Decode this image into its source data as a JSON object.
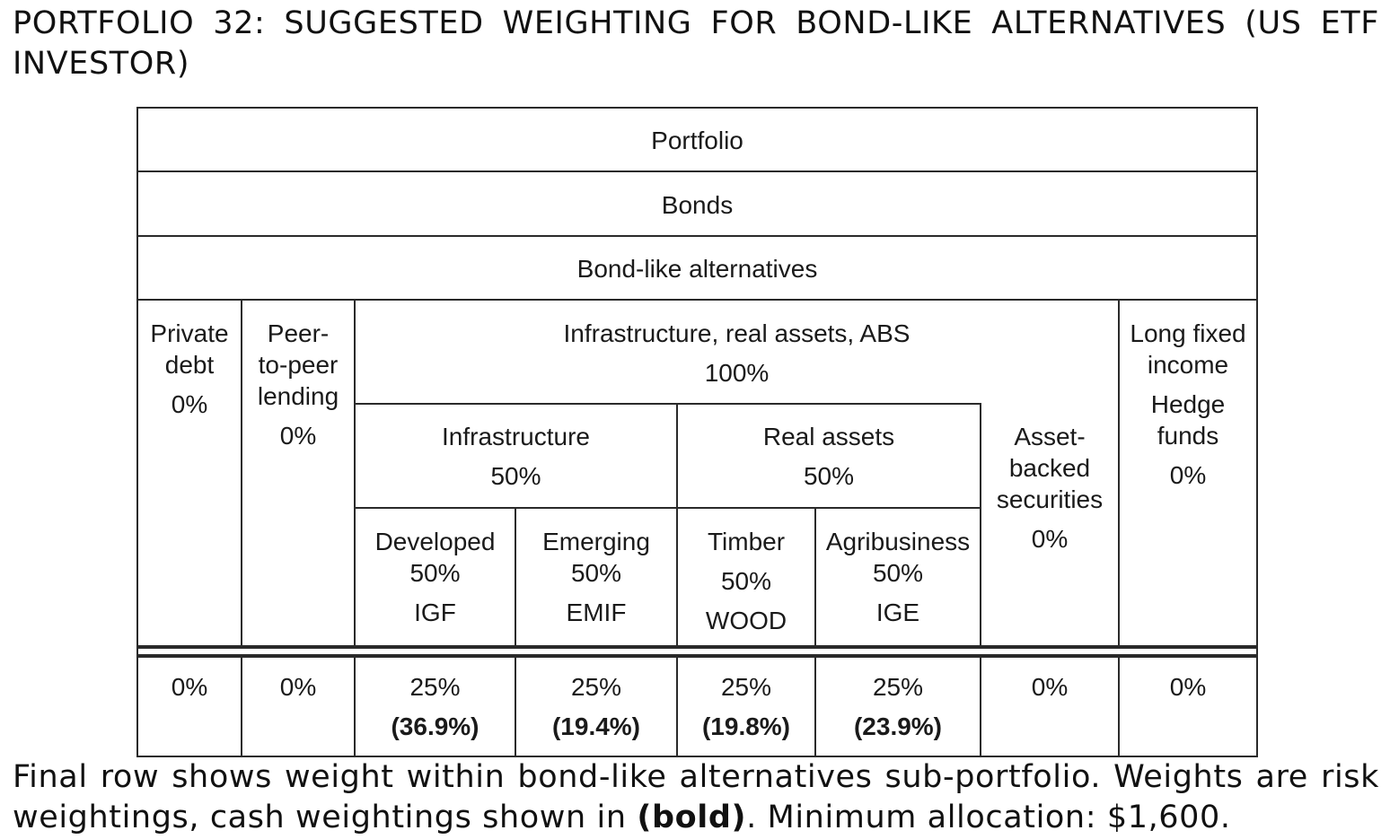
{
  "title": "PORTFOLIO 32: SUGGESTED WEIGHTING FOR BOND-LIKE ALTERNATIVES (US ETF INVESTOR)",
  "table": {
    "portfolio": "Portfolio",
    "bonds": "Bonds",
    "bond_like_alternatives": "Bond-like alternatives",
    "private_debt": {
      "line1": "Private",
      "line2": "debt",
      "weight": "0%"
    },
    "peer_to_peer": {
      "line1": "Peer-",
      "line2": "to-peer",
      "line3": "lending",
      "weight": "0%"
    },
    "infra_real_abs": {
      "label": "Infrastructure, real assets, ABS",
      "weight": "100%"
    },
    "long_fixed_income": {
      "line1": "Long fixed",
      "line2": "income",
      "line3": "Hedge",
      "line4": "funds",
      "weight": "0%"
    },
    "infrastructure": {
      "label": "Infrastructure",
      "weight": "50%"
    },
    "real_assets": {
      "label": "Real assets",
      "weight": "50%"
    },
    "abs": {
      "line1": "Asset-",
      "line2": "backed",
      "line3": "securities",
      "weight": "0%"
    },
    "developed": {
      "label": "Developed",
      "weight": "50%",
      "ticker": "IGF"
    },
    "emerging": {
      "label": "Emerging",
      "weight": "50%",
      "ticker": "EMIF"
    },
    "timber": {
      "label": "Timber",
      "weight": "50%",
      "ticker": "WOOD"
    },
    "agribusiness": {
      "label": "Agribusiness",
      "weight": "50%",
      "ticker": "IGE"
    },
    "final_row": [
      {
        "risk": "0%"
      },
      {
        "risk": "0%"
      },
      {
        "risk": "25%",
        "cash": "(36.9%)"
      },
      {
        "risk": "25%",
        "cash": "(19.4%)"
      },
      {
        "risk": "25%",
        "cash": "(19.8%)"
      },
      {
        "risk": "25%",
        "cash": "(23.9%)"
      },
      {
        "risk": "0%"
      },
      {
        "risk": "0%"
      }
    ]
  },
  "caption": {
    "part1": "Final row shows weight within bond-like alternatives sub-portfolio. Weights are risk weightings, cash weightings shown in ",
    "bold": "(bold)",
    "part2": ". Minimum allocation: $1,600."
  }
}
